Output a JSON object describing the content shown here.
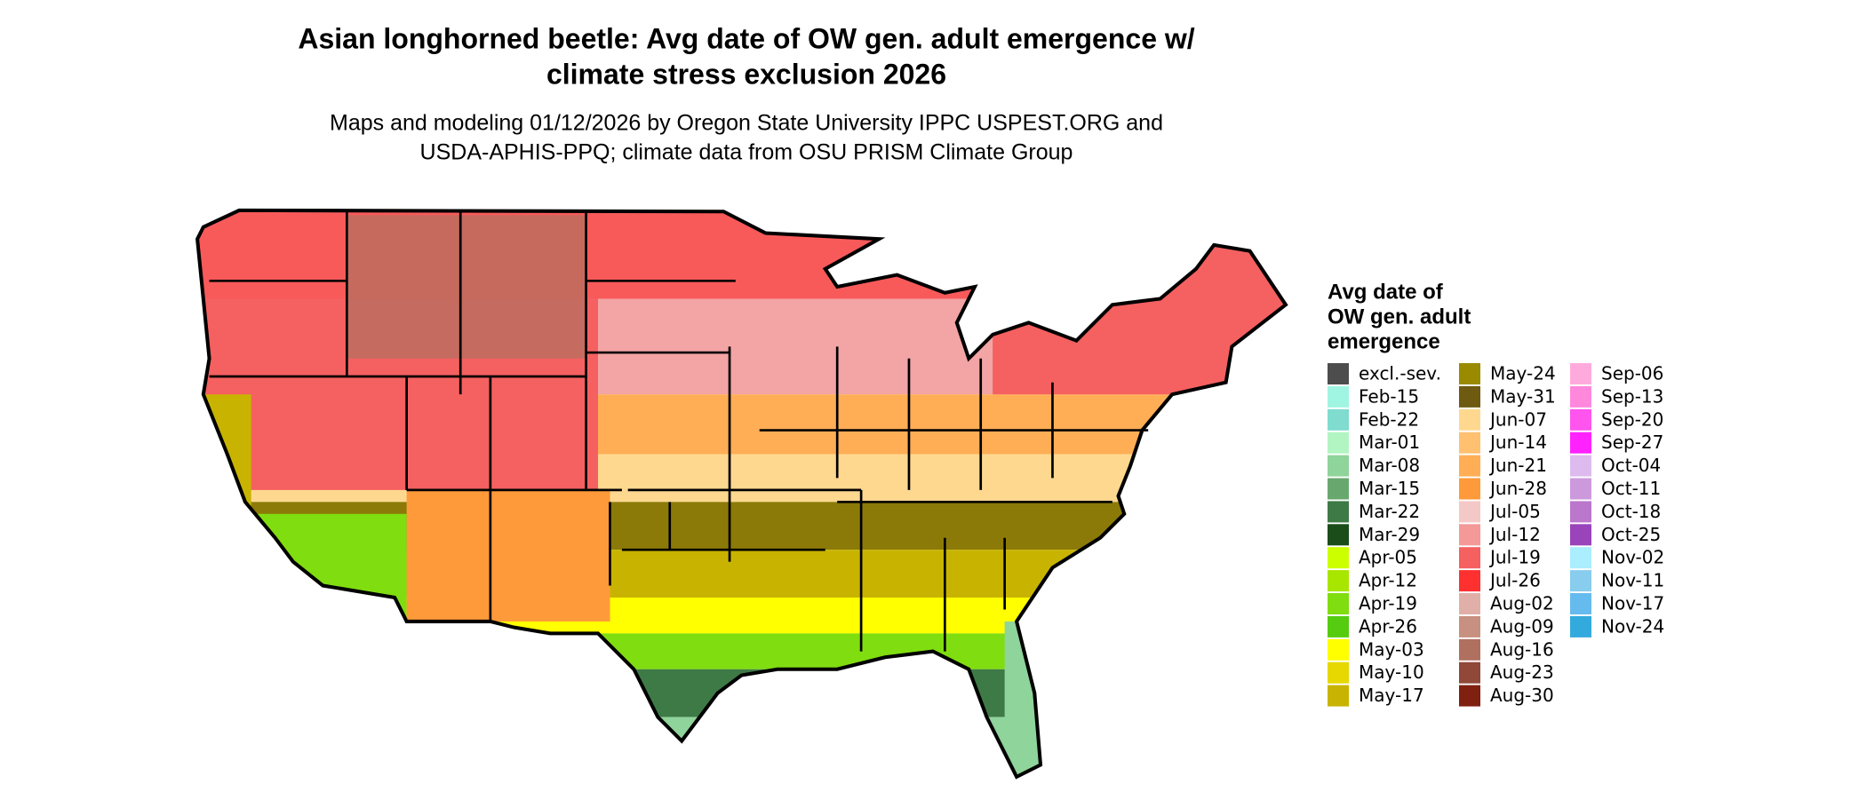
{
  "header": {
    "title_lines": [
      "Asian longhorned beetle: Avg date of OW gen. adult emergence w/",
      "climate stress exclusion 2026"
    ],
    "subtitle_lines": [
      "Maps and modeling 01/12/2026 by Oregon State University IPPC USPEST.ORG and",
      "USDA-APHIS-PPQ; climate data from OSU PRISM Climate Group"
    ]
  },
  "legend": {
    "title_lines": [
      "Avg date of",
      "OW gen. adult",
      "emergence"
    ],
    "columns": [
      [
        {
          "label": "excl.-sev.",
          "color": "#4d4d4d"
        },
        {
          "label": "Feb-15",
          "color": "#a0f5e2"
        },
        {
          "label": "Feb-22",
          "color": "#7fdccf"
        },
        {
          "label": "Mar-01",
          "color": "#b2f5c2"
        },
        {
          "label": "Mar-08",
          "color": "#8fd49a"
        },
        {
          "label": "Mar-15",
          "color": "#68a86f"
        },
        {
          "label": "Mar-22",
          "color": "#3e7a45"
        },
        {
          "label": "Mar-29",
          "color": "#1a4d1a"
        },
        {
          "label": "Apr-05",
          "color": "#ccff00"
        },
        {
          "label": "Apr-12",
          "color": "#a8e600"
        },
        {
          "label": "Apr-19",
          "color": "#80dd10"
        },
        {
          "label": "Apr-26",
          "color": "#55cc10"
        },
        {
          "label": "May-03",
          "color": "#ffff00"
        },
        {
          "label": "May-10",
          "color": "#e6d800"
        },
        {
          "label": "May-17",
          "color": "#c8b400"
        }
      ],
      [
        {
          "label": "May-24",
          "color": "#9a8a00"
        },
        {
          "label": "May-31",
          "color": "#6e5a10"
        },
        {
          "label": "Jun-07",
          "color": "#ffd890"
        },
        {
          "label": "Jun-14",
          "color": "#ffc070"
        },
        {
          "label": "Jun-21",
          "color": "#ffae55"
        },
        {
          "label": "Jun-28",
          "color": "#ff9a3a"
        },
        {
          "label": "Jul-05",
          "color": "#f5c8c8"
        },
        {
          "label": "Jul-12",
          "color": "#f59898"
        },
        {
          "label": "Jul-19",
          "color": "#f56060"
        },
        {
          "label": "Jul-26",
          "color": "#ff3030"
        },
        {
          "label": "Aug-02",
          "color": "#e0b0a8"
        },
        {
          "label": "Aug-09",
          "color": "#c89080"
        },
        {
          "label": "Aug-16",
          "color": "#b07060"
        },
        {
          "label": "Aug-23",
          "color": "#904838"
        },
        {
          "label": "Aug-30",
          "color": "#802010"
        }
      ],
      [
        {
          "label": "Sep-06",
          "color": "#ffaadd"
        },
        {
          "label": "Sep-13",
          "color": "#ff88dd"
        },
        {
          "label": "Sep-20",
          "color": "#ff55ee"
        },
        {
          "label": "Sep-27",
          "color": "#ff22ff"
        },
        {
          "label": "Oct-04",
          "color": "#ddbbee"
        },
        {
          "label": "Oct-11",
          "color": "#cc99dd"
        },
        {
          "label": "Oct-18",
          "color": "#bb77cc"
        },
        {
          "label": "Oct-25",
          "color": "#9944bb"
        },
        {
          "label": "Nov-02",
          "color": "#aaeeff"
        },
        {
          "label": "Nov-11",
          "color": "#88ccee"
        },
        {
          "label": "Nov-17",
          "color": "#66bbee"
        },
        {
          "label": "Nov-24",
          "color": "#33aadd"
        }
      ]
    ]
  }
}
